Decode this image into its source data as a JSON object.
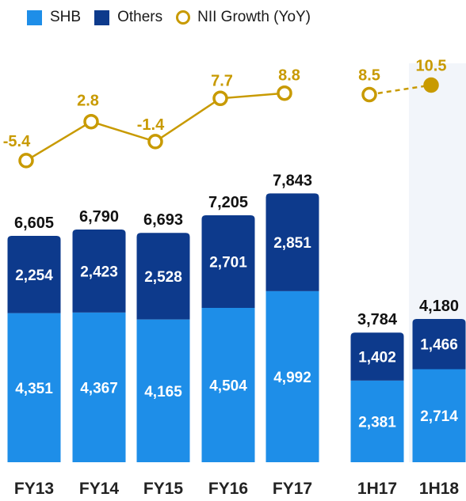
{
  "chart_data": {
    "type": "bar",
    "stacked": true,
    "legend_position": "top",
    "categories": [
      "FY13",
      "FY14",
      "FY15",
      "FY16",
      "FY17",
      "1H17",
      "1H18"
    ],
    "series": [
      {
        "name": "SHB",
        "color": "#1e8ee8",
        "values": [
          4351,
          4367,
          4165,
          4504,
          4992,
          2381,
          2714
        ]
      },
      {
        "name": "Others",
        "color": "#0d3a8c",
        "values": [
          2254,
          2423,
          2528,
          2701,
          2851,
          1402,
          1466
        ]
      }
    ],
    "totals": [
      6605,
      6790,
      6693,
      7205,
      7843,
      3784,
      4180
    ],
    "line_series": {
      "name": "NII Growth (YoY)",
      "color": "#c89a00",
      "values": [
        -5.4,
        2.8,
        -1.4,
        7.7,
        8.8,
        8.5,
        10.5
      ]
    },
    "labels": {
      "totals": [
        "6,605",
        "6,790",
        "6,693",
        "7,205",
        "7,843",
        "3,784",
        "4,180"
      ],
      "shb": [
        "4,351",
        "4,367",
        "4,165",
        "4,504",
        "4,992",
        "2,381",
        "2,714"
      ],
      "others": [
        "2,254",
        "2,423",
        "2,528",
        "2,701",
        "2,851",
        "1,402",
        "1,466"
      ],
      "growth": [
        "-5.4",
        "2.8",
        "-1.4",
        "7.7",
        "8.8",
        "8.5",
        "10.5"
      ]
    },
    "title": "",
    "xlabel": "",
    "ylabel": "",
    "grid": false
  }
}
